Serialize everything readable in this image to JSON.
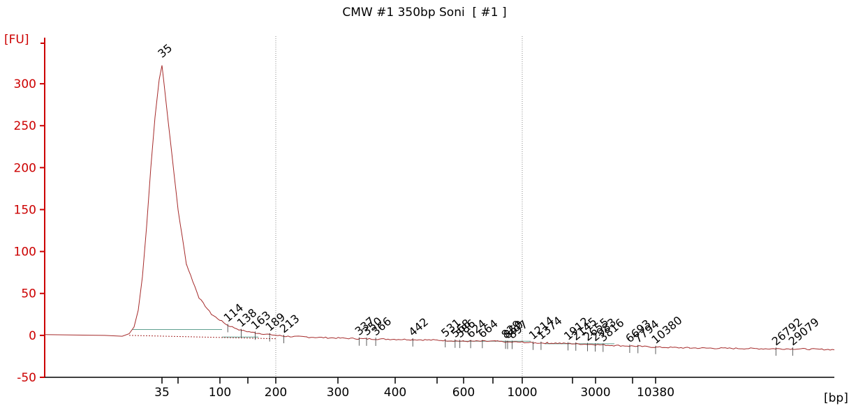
{
  "chart_data": {
    "type": "line",
    "title": "CMW #1 350bp Soni  [ #1 ]",
    "ylabel": "[FU]",
    "xlabel": "[bp]",
    "ylim": [
      -50,
      340
    ],
    "y_ticks": [
      -50,
      0,
      50,
      100,
      150,
      200,
      250,
      300
    ],
    "x_tick_labels": [
      "35",
      "100",
      "200",
      "300",
      "400",
      "600",
      "1000",
      "3000",
      "10380"
    ],
    "x_ticks_unlabeled": [
      "50",
      "150",
      "500",
      "700",
      "2000",
      "7000"
    ],
    "series": [
      {
        "points": [
          [
            35,
            322
          ],
          [
            50,
            150
          ],
          [
            60,
            85
          ],
          [
            75,
            45
          ],
          [
            90,
            25
          ],
          [
            114,
            12
          ],
          [
            138,
            6
          ],
          [
            163,
            3
          ],
          [
            189,
            1
          ],
          [
            213,
            -1
          ],
          [
            250,
            -2
          ],
          [
            337,
            -4
          ],
          [
            442,
            -5
          ],
          [
            531,
            -6
          ],
          [
            600,
            -7
          ],
          [
            724,
            -7
          ],
          [
            850,
            -8
          ],
          [
            1000,
            -8
          ],
          [
            1214,
            -9
          ],
          [
            1500,
            -9
          ],
          [
            2145,
            -10
          ],
          [
            3000,
            -11
          ],
          [
            5000,
            -12
          ],
          [
            7794,
            -13
          ],
          [
            10380,
            -14
          ],
          [
            15000,
            -15
          ],
          [
            26792,
            -16
          ],
          [
            29079,
            -16
          ],
          [
            38000,
            -17
          ]
        ]
      }
    ],
    "peaks": [
      {
        "label": "35",
        "bp": 35,
        "color": "#008000"
      },
      {
        "label": "114",
        "bp": 114
      },
      {
        "label": "138",
        "bp": 138
      },
      {
        "label": "163",
        "bp": 163
      },
      {
        "label": "189",
        "bp": 189
      },
      {
        "label": "213",
        "bp": 213
      },
      {
        "label": "337",
        "bp": 337
      },
      {
        "label": "350",
        "bp": 350
      },
      {
        "label": "366",
        "bp": 366
      },
      {
        "label": "442",
        "bp": 442
      },
      {
        "label": "531",
        "bp": 531
      },
      {
        "label": "568",
        "bp": 568
      },
      {
        "label": "586",
        "bp": 586
      },
      {
        "label": "624",
        "bp": 624
      },
      {
        "label": "664",
        "bp": 664
      },
      {
        "label": "829",
        "bp": 829
      },
      {
        "label": "850",
        "bp": 850
      },
      {
        "label": "897",
        "bp": 897
      },
      {
        "label": "1214",
        "bp": 1214
      },
      {
        "label": "1374",
        "bp": 1374
      },
      {
        "label": "1912",
        "bp": 1912
      },
      {
        "label": "2145",
        "bp": 2145
      },
      {
        "label": "2655",
        "bp": 2655
      },
      {
        "label": "2983",
        "bp": 2983
      },
      {
        "label": "3816",
        "bp": 3816
      },
      {
        "label": "6693",
        "bp": 6693
      },
      {
        "label": "7794",
        "bp": 7794
      },
      {
        "label": "10380",
        "bp": 10380,
        "color": "#9933cc"
      },
      {
        "label": "26792",
        "bp": 26792
      },
      {
        "label": "29079",
        "bp": 29079
      }
    ],
    "dotted_gridlines_at": [
      "200",
      "1000"
    ],
    "colors": {
      "axis": "#cc0000",
      "trace": "#a52a2a",
      "baseline": "#5f9f8f"
    }
  }
}
